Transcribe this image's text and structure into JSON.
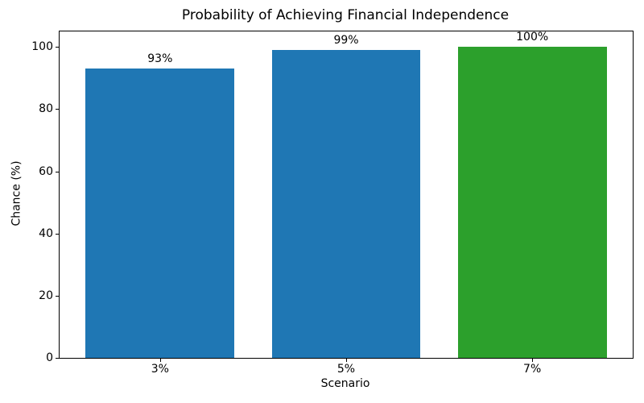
{
  "chart_data": {
    "type": "bar",
    "title": "Probability of Achieving Financial Independence",
    "xlabel": "Scenario",
    "ylabel": "Chance (%)",
    "categories": [
      "3%",
      "5%",
      "7%"
    ],
    "values": [
      93,
      99,
      100
    ],
    "bar_labels": [
      "93%",
      "99%",
      "100%"
    ],
    "bar_colors": [
      "#1f77b4",
      "#1f77b4",
      "#2ca02c"
    ],
    "yticks": [
      0,
      20,
      40,
      60,
      80,
      100
    ],
    "ylim": [
      0,
      105
    ],
    "grid": false,
    "legend": "none",
    "background": "#ffffff",
    "accent_blue": "#1f77b4",
    "accent_green": "#2ca02c"
  }
}
